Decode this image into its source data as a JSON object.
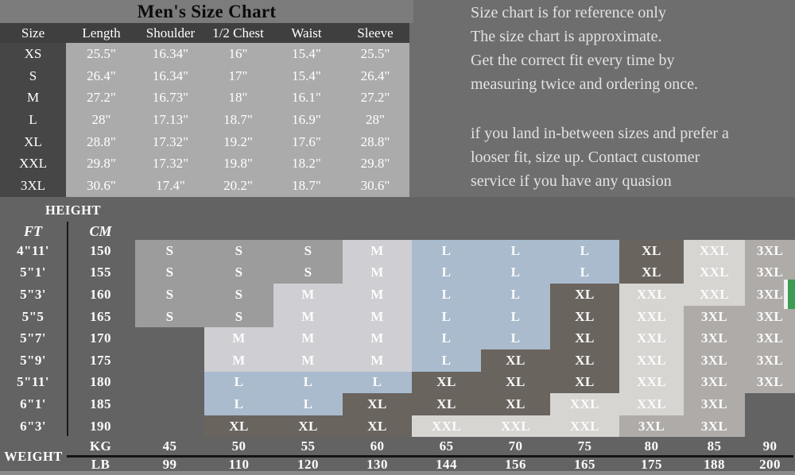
{
  "notes": {
    "line1": "Size chart is for reference only",
    "para1": [
      "The size chart is approximate.",
      "Get the correct fit every time by",
      "measuring twice and ordering once."
    ],
    "para2": [
      "if you land in-between sizes and prefer a",
      "looser fit, size up. Contact customer",
      "service if you have any quasion"
    ]
  },
  "accent": {
    "green_tab": "#3d9b52"
  },
  "chart_data": [
    {
      "type": "table",
      "title": "Men's Size Chart",
      "columns": [
        "Size",
        "Length",
        "Shoulder",
        "1/2 Chest",
        "Waist",
        "Sleeve"
      ],
      "rows": [
        [
          "XS",
          "25.5\"",
          "16.34\"",
          "16\"",
          "15.4\"",
          "25.5\""
        ],
        [
          "S",
          "26.4\"",
          "16.34\"",
          "17\"",
          "15.4\"",
          "26.4\""
        ],
        [
          "M",
          "27.2\"",
          "16.73\"",
          "18\"",
          "16.1\"",
          "27.2\""
        ],
        [
          "L",
          "28\"",
          "17.13\"",
          "18.7\"",
          "16.9\"",
          "28\""
        ],
        [
          "XL",
          "28.8\"",
          "17.32\"",
          "19.2\"",
          "17.6\"",
          "28.8\""
        ],
        [
          "XXL",
          "29.8\"",
          "17.32\"",
          "19.8\"",
          "18.2\"",
          "29.8\""
        ],
        [
          "3XL",
          "30.6\"",
          "17.4\"",
          "20.2\"",
          "18.7\"",
          "30.6\""
        ]
      ]
    },
    {
      "type": "heatmap",
      "row_axis_label": "HEIGHT",
      "col_axis_label": "WEIGHT",
      "row_units": [
        "FT",
        "CM"
      ],
      "col_units": [
        "KG",
        "LB"
      ],
      "heights_ft": [
        "4\"11'",
        "5\"1'",
        "5\"3'",
        "5\"5",
        "5\"7'",
        "5\"9'",
        "5\"11'",
        "6\"1'",
        "6\"3'"
      ],
      "heights_cm": [
        150,
        155,
        160,
        165,
        170,
        175,
        180,
        185,
        190
      ],
      "weights_kg": [
        45,
        50,
        55,
        60,
        65,
        70,
        75,
        80,
        85,
        90
      ],
      "weights_lb": [
        99,
        110,
        120,
        130,
        144,
        156,
        165,
        175,
        188,
        200
      ],
      "cells": [
        [
          "S",
          "S",
          "S",
          "M",
          "L",
          "L",
          "L",
          "XL",
          "XXL",
          "3XL"
        ],
        [
          "S",
          "S",
          "S",
          "M",
          "L",
          "L",
          "L",
          "XL",
          "XXL",
          "3XL"
        ],
        [
          "S",
          "S",
          "M",
          "M",
          "L",
          "L",
          "XL",
          "XXL",
          "XXL",
          "3XL"
        ],
        [
          "S",
          "S",
          "M",
          "M",
          "L",
          "L",
          "XL",
          "XXL",
          "3XL",
          "3XL"
        ],
        [
          "",
          "M",
          "M",
          "M",
          "L",
          "L",
          "XL",
          "XXL",
          "3XL",
          "3XL"
        ],
        [
          "",
          "M",
          "M",
          "M",
          "L",
          "XL",
          "XL",
          "XXL",
          "3XL",
          "3XL"
        ],
        [
          "",
          "L",
          "L",
          "L",
          "XL",
          "XL",
          "XL",
          "XXL",
          "3XL",
          "3XL"
        ],
        [
          "",
          "L",
          "L",
          "XL",
          "XL",
          "XL",
          "XXL",
          "XXL",
          "3XL",
          ""
        ],
        [
          "",
          "XL",
          "XL",
          "XL",
          "XXL",
          "XXL",
          "XXL",
          "3XL",
          "3XL",
          ""
        ]
      ],
      "cell_colors": {
        "S": "#9c9c9c",
        "M": "#cfcfd3",
        "L": "#aabbce",
        "XL": "#6a645e",
        "XXL": "#d6d5d2",
        "3XL": "#aeaba8"
      }
    }
  ]
}
